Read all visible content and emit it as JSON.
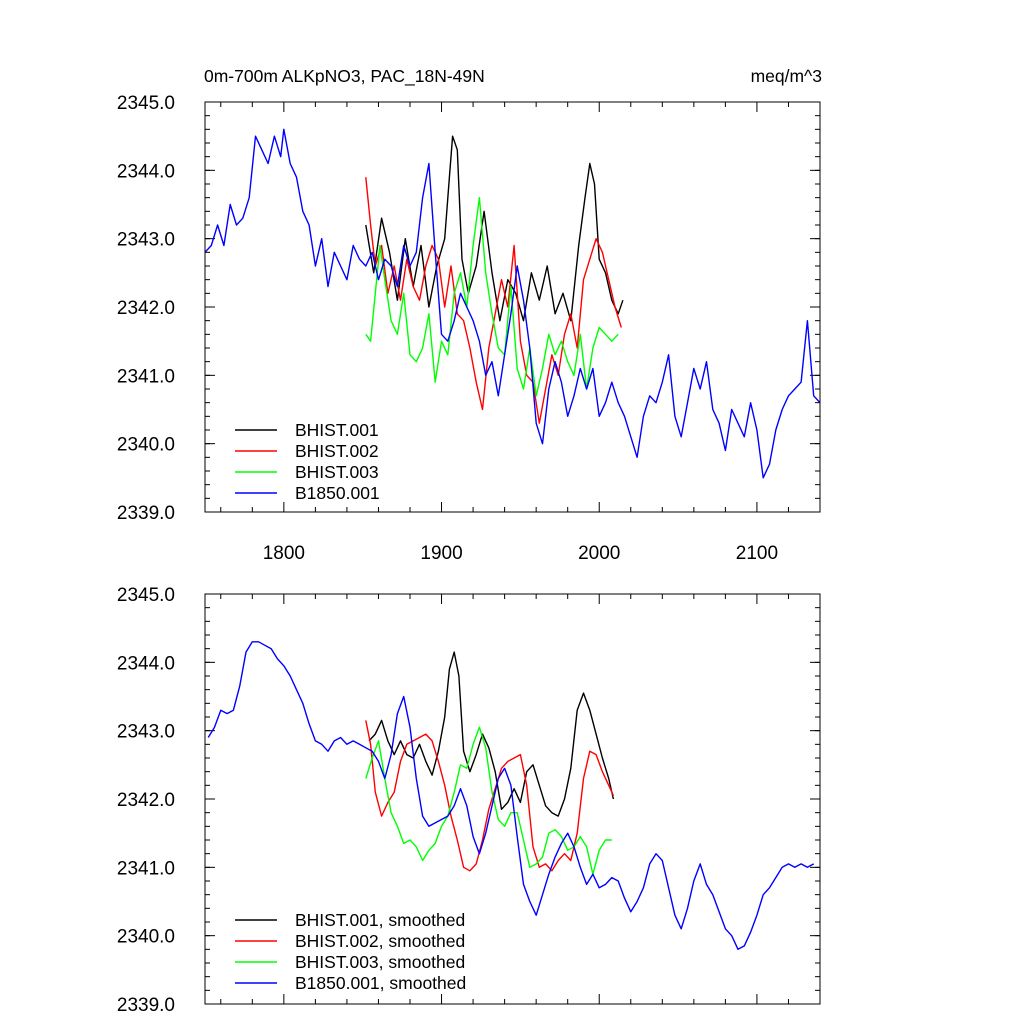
{
  "chart_data": [
    {
      "type": "line",
      "title": "0m-700m ALKpNO3, PAC_18N-49N",
      "units_label": "meq/m^3",
      "xlabel": "",
      "ylabel": "",
      "xlim": [
        1750,
        2140
      ],
      "ylim": [
        2339.0,
        2345.0
      ],
      "x_ticks": [
        1800,
        1900,
        2000,
        2100
      ],
      "x_tick_labels": [
        "1800",
        "1900",
        "2000",
        "2100"
      ],
      "y_ticks": [
        2339.0,
        2340.0,
        2341.0,
        2342.0,
        2343.0,
        2344.0,
        2345.0
      ],
      "y_tick_labels": [
        "2339.0",
        "2340.0",
        "2341.0",
        "2342.0",
        "2343.0",
        "2344.0",
        "2345.0"
      ],
      "legend_position": "bottom-left",
      "series": [
        {
          "name": "BHIST.001",
          "color": "#000000",
          "x": [
            1852,
            1857,
            1862,
            1867,
            1872,
            1877,
            1882,
            1887,
            1892,
            1897,
            1902,
            1905,
            1907,
            1910,
            1913,
            1917,
            1922,
            1927,
            1932,
            1937,
            1942,
            1947,
            1952,
            1957,
            1962,
            1967,
            1972,
            1977,
            1982,
            1987,
            1991,
            1994,
            1997,
            2000,
            2004,
            2008,
            2012,
            2015
          ],
          "values": [
            2343.2,
            2342.5,
            2343.3,
            2342.8,
            2342.1,
            2343.0,
            2342.3,
            2342.9,
            2342.0,
            2342.6,
            2343.0,
            2343.9,
            2344.5,
            2344.3,
            2342.7,
            2342.2,
            2342.6,
            2343.4,
            2342.5,
            2341.8,
            2342.4,
            2342.2,
            2341.8,
            2342.5,
            2342.1,
            2342.6,
            2341.9,
            2342.2,
            2341.8,
            2342.9,
            2343.6,
            2344.1,
            2343.8,
            2342.7,
            2342.5,
            2342.1,
            2341.9,
            2342.1
          ]
        },
        {
          "name": "BHIST.002",
          "color": "#ff0000",
          "x": [
            1852,
            1855,
            1858,
            1862,
            1866,
            1870,
            1874,
            1878,
            1882,
            1886,
            1890,
            1894,
            1898,
            1902,
            1906,
            1910,
            1914,
            1918,
            1922,
            1926,
            1930,
            1934,
            1938,
            1942,
            1946,
            1950,
            1954,
            1958,
            1962,
            1966,
            1970,
            1974,
            1978,
            1982,
            1986,
            1990,
            1994,
            1998,
            2002,
            2006,
            2010,
            2014
          ],
          "values": [
            2343.9,
            2343.2,
            2342.6,
            2342.9,
            2342.2,
            2342.6,
            2342.1,
            2342.7,
            2342.3,
            2342.1,
            2342.6,
            2342.9,
            2342.7,
            2342.0,
            2342.6,
            2341.9,
            2341.8,
            2341.4,
            2340.9,
            2340.5,
            2341.4,
            2341.9,
            2342.4,
            2342.0,
            2342.9,
            2341.5,
            2341.0,
            2340.9,
            2340.3,
            2340.8,
            2341.3,
            2341.0,
            2341.6,
            2341.9,
            2341.4,
            2342.4,
            2342.7,
            2343.0,
            2342.8,
            2342.4,
            2342.0,
            2341.7
          ]
        },
        {
          "name": "BHIST.003",
          "color": "#00ff00",
          "x": [
            1852,
            1855,
            1858,
            1861,
            1864,
            1868,
            1872,
            1876,
            1880,
            1884,
            1888,
            1892,
            1896,
            1900,
            1904,
            1908,
            1912,
            1916,
            1920,
            1924,
            1928,
            1932,
            1936,
            1940,
            1944,
            1948,
            1952,
            1956,
            1960,
            1964,
            1968,
            1972,
            1976,
            1980,
            1984,
            1988,
            1992,
            1996,
            2000,
            2004,
            2008,
            2012
          ],
          "values": [
            2341.6,
            2341.5,
            2342.2,
            2342.9,
            2342.4,
            2341.8,
            2341.6,
            2342.2,
            2341.3,
            2341.2,
            2341.4,
            2341.9,
            2340.9,
            2341.5,
            2341.3,
            2342.2,
            2342.5,
            2342.0,
            2342.9,
            2343.6,
            2342.5,
            2341.9,
            2341.4,
            2341.3,
            2342.3,
            2341.1,
            2340.8,
            2341.4,
            2340.7,
            2341.1,
            2341.6,
            2341.3,
            2341.5,
            2341.2,
            2341.0,
            2341.6,
            2340.8,
            2341.4,
            2341.7,
            2341.6,
            2341.5,
            2341.6
          ]
        },
        {
          "name": "B1850.001",
          "color": "#0000ff",
          "x": [
            1750,
            1754,
            1758,
            1762,
            1766,
            1770,
            1774,
            1778,
            1782,
            1786,
            1790,
            1794,
            1798,
            1800,
            1804,
            1808,
            1812,
            1816,
            1820,
            1824,
            1828,
            1832,
            1836,
            1840,
            1844,
            1848,
            1852,
            1856,
            1860,
            1864,
            1868,
            1872,
            1876,
            1880,
            1884,
            1888,
            1892,
            1896,
            1900,
            1904,
            1908,
            1912,
            1916,
            1920,
            1924,
            1928,
            1932,
            1936,
            1940,
            1944,
            1948,
            1952,
            1956,
            1960,
            1964,
            1968,
            1972,
            1976,
            1980,
            1984,
            1988,
            1992,
            1996,
            2000,
            2004,
            2008,
            2012,
            2016,
            2020,
            2024,
            2028,
            2032,
            2036,
            2040,
            2044,
            2048,
            2052,
            2056,
            2060,
            2064,
            2068,
            2072,
            2076,
            2080,
            2084,
            2088,
            2092,
            2096,
            2100,
            2104,
            2108,
            2112,
            2116,
            2120,
            2124,
            2128,
            2132,
            2136,
            2140
          ],
          "values": [
            2342.8,
            2342.9,
            2343.2,
            2342.9,
            2343.5,
            2343.2,
            2343.3,
            2343.6,
            2344.5,
            2344.3,
            2344.1,
            2344.5,
            2344.2,
            2344.6,
            2344.1,
            2343.9,
            2343.4,
            2343.2,
            2342.6,
            2343.0,
            2342.3,
            2342.8,
            2342.6,
            2342.4,
            2342.9,
            2342.7,
            2342.6,
            2342.8,
            2342.4,
            2342.7,
            2342.6,
            2342.3,
            2342.9,
            2342.6,
            2342.8,
            2343.6,
            2344.1,
            2342.8,
            2341.6,
            2341.5,
            2341.8,
            2342.2,
            2342.0,
            2341.8,
            2341.5,
            2341.0,
            2341.2,
            2340.7,
            2341.3,
            2341.9,
            2342.6,
            2342.1,
            2341.4,
            2340.3,
            2340.0,
            2340.8,
            2341.2,
            2340.9,
            2340.4,
            2340.7,
            2341.1,
            2340.8,
            2341.1,
            2340.4,
            2340.6,
            2340.9,
            2340.6,
            2340.4,
            2340.1,
            2339.8,
            2340.4,
            2340.7,
            2340.6,
            2340.9,
            2341.3,
            2340.4,
            2340.1,
            2340.6,
            2341.1,
            2340.8,
            2341.2,
            2340.5,
            2340.3,
            2339.9,
            2340.5,
            2340.3,
            2340.1,
            2340.6,
            2340.2,
            2339.5,
            2339.7,
            2340.2,
            2340.5,
            2340.7,
            2340.8,
            2340.9,
            2341.8,
            2340.7,
            2340.6
          ]
        }
      ]
    },
    {
      "type": "line",
      "title": "",
      "xlabel": "",
      "ylabel": "",
      "xlim": [
        1750,
        2140
      ],
      "ylim": [
        2339.0,
        2345.0
      ],
      "x_ticks": [
        1800,
        1900,
        2000,
        2100
      ],
      "y_ticks": [
        2339.0,
        2340.0,
        2341.0,
        2342.0,
        2343.0,
        2344.0,
        2345.0
      ],
      "y_tick_labels": [
        "2339.0",
        "2340.0",
        "2341.0",
        "2342.0",
        "2343.0",
        "2344.0",
        "2345.0"
      ],
      "legend_position": "bottom-left",
      "series": [
        {
          "name": "BHIST.001, smoothed",
          "color": "#000000",
          "x": [
            1854,
            1858,
            1862,
            1866,
            1870,
            1874,
            1878,
            1882,
            1886,
            1890,
            1894,
            1898,
            1902,
            1905,
            1908,
            1911,
            1914,
            1918,
            1922,
            1926,
            1930,
            1934,
            1938,
            1942,
            1946,
            1950,
            1954,
            1958,
            1962,
            1966,
            1970,
            1974,
            1978,
            1982,
            1986,
            1990,
            1994,
            1998,
            2002,
            2006,
            2009
          ],
          "values": [
            2342.85,
            2342.95,
            2343.15,
            2342.85,
            2342.65,
            2342.85,
            2342.65,
            2342.6,
            2342.8,
            2342.55,
            2342.35,
            2342.7,
            2343.2,
            2343.9,
            2344.15,
            2343.8,
            2342.7,
            2342.4,
            2342.65,
            2342.95,
            2342.75,
            2342.4,
            2341.85,
            2341.95,
            2342.15,
            2341.95,
            2342.4,
            2342.5,
            2342.2,
            2341.9,
            2341.8,
            2341.75,
            2342.0,
            2342.45,
            2343.3,
            2343.55,
            2343.3,
            2342.95,
            2342.6,
            2342.3,
            2342.0
          ]
        },
        {
          "name": "BHIST.002, smoothed",
          "color": "#ff0000",
          "x": [
            1852,
            1855,
            1858,
            1862,
            1866,
            1870,
            1874,
            1878,
            1882,
            1886,
            1890,
            1894,
            1898,
            1902,
            1906,
            1910,
            1914,
            1918,
            1922,
            1926,
            1930,
            1934,
            1938,
            1942,
            1946,
            1950,
            1954,
            1958,
            1962,
            1966,
            1970,
            1974,
            1978,
            1982,
            1986,
            1990,
            1994,
            1998,
            2002,
            2006,
            2009
          ],
          "values": [
            2343.15,
            2342.8,
            2342.1,
            2341.75,
            2341.95,
            2342.1,
            2342.55,
            2342.8,
            2342.85,
            2342.9,
            2342.95,
            2342.85,
            2342.55,
            2342.2,
            2341.75,
            2341.4,
            2341.0,
            2340.95,
            2341.05,
            2341.4,
            2341.85,
            2342.15,
            2342.45,
            2342.55,
            2342.6,
            2342.65,
            2342.2,
            2341.3,
            2341.0,
            2341.05,
            2340.95,
            2341.1,
            2341.2,
            2341.1,
            2341.5,
            2342.3,
            2342.7,
            2342.65,
            2342.4,
            2342.2,
            2342.05
          ]
        },
        {
          "name": "BHIST.003, smoothed",
          "color": "#00ff00",
          "x": [
            1852,
            1856,
            1860,
            1864,
            1868,
            1872,
            1876,
            1880,
            1884,
            1888,
            1892,
            1896,
            1900,
            1904,
            1908,
            1912,
            1916,
            1920,
            1924,
            1928,
            1932,
            1936,
            1940,
            1944,
            1948,
            1952,
            1956,
            1960,
            1964,
            1968,
            1972,
            1976,
            1980,
            1984,
            1988,
            1992,
            1996,
            2000,
            2004,
            2008
          ],
          "values": [
            2342.3,
            2342.6,
            2342.85,
            2342.3,
            2341.8,
            2341.6,
            2341.35,
            2341.4,
            2341.3,
            2341.1,
            2341.25,
            2341.35,
            2341.6,
            2341.75,
            2342.1,
            2342.5,
            2342.45,
            2342.8,
            2343.05,
            2342.75,
            2342.1,
            2341.7,
            2341.6,
            2341.8,
            2341.8,
            2341.4,
            2341.0,
            2341.05,
            2341.15,
            2341.5,
            2341.55,
            2341.45,
            2341.25,
            2341.3,
            2341.45,
            2341.3,
            2340.9,
            2341.25,
            2341.4,
            2341.4
          ]
        },
        {
          "name": "B1850.001, smoothed",
          "color": "#0000ff",
          "x": [
            1752,
            1756,
            1760,
            1764,
            1768,
            1772,
            1776,
            1780,
            1784,
            1788,
            1792,
            1796,
            1800,
            1804,
            1808,
            1812,
            1816,
            1820,
            1824,
            1828,
            1832,
            1836,
            1840,
            1844,
            1848,
            1852,
            1856,
            1860,
            1864,
            1868,
            1872,
            1876,
            1880,
            1884,
            1888,
            1892,
            1896,
            1900,
            1904,
            1908,
            1912,
            1916,
            1920,
            1924,
            1928,
            1932,
            1936,
            1940,
            1944,
            1948,
            1952,
            1956,
            1960,
            1964,
            1968,
            1972,
            1976,
            1980,
            1984,
            1988,
            1992,
            1996,
            2000,
            2004,
            2008,
            2012,
            2016,
            2020,
            2024,
            2028,
            2032,
            2036,
            2040,
            2044,
            2048,
            2052,
            2056,
            2060,
            2064,
            2068,
            2072,
            2076,
            2080,
            2084,
            2088,
            2092,
            2096,
            2100,
            2104,
            2108,
            2112,
            2116,
            2120,
            2124,
            2128,
            2132,
            2136
          ],
          "values": [
            2342.9,
            2343.05,
            2343.3,
            2343.25,
            2343.3,
            2343.65,
            2344.15,
            2344.3,
            2344.3,
            2344.25,
            2344.2,
            2344.05,
            2343.95,
            2343.8,
            2343.6,
            2343.4,
            2343.1,
            2342.85,
            2342.8,
            2342.7,
            2342.85,
            2342.9,
            2342.8,
            2342.85,
            2342.8,
            2342.75,
            2342.7,
            2342.55,
            2342.3,
            2342.65,
            2343.25,
            2343.5,
            2343.05,
            2342.3,
            2341.75,
            2341.6,
            2341.65,
            2341.7,
            2341.75,
            2341.9,
            2342.15,
            2341.9,
            2341.45,
            2341.2,
            2341.5,
            2341.9,
            2342.3,
            2342.45,
            2342.2,
            2341.45,
            2340.75,
            2340.5,
            2340.3,
            2340.6,
            2340.9,
            2341.15,
            2341.35,
            2341.5,
            2341.3,
            2341.0,
            2340.75,
            2340.9,
            2340.7,
            2340.75,
            2340.85,
            2340.8,
            2340.55,
            2340.35,
            2340.5,
            2340.7,
            2341.05,
            2341.2,
            2341.1,
            2340.7,
            2340.3,
            2340.1,
            2340.4,
            2340.8,
            2341.05,
            2340.75,
            2340.6,
            2340.35,
            2340.1,
            2340.0,
            2339.8,
            2339.85,
            2340.05,
            2340.3,
            2340.6,
            2340.7,
            2340.85,
            2341.0,
            2341.05,
            2341.0,
            2341.05,
            2341.0,
            2341.05
          ]
        }
      ]
    }
  ]
}
